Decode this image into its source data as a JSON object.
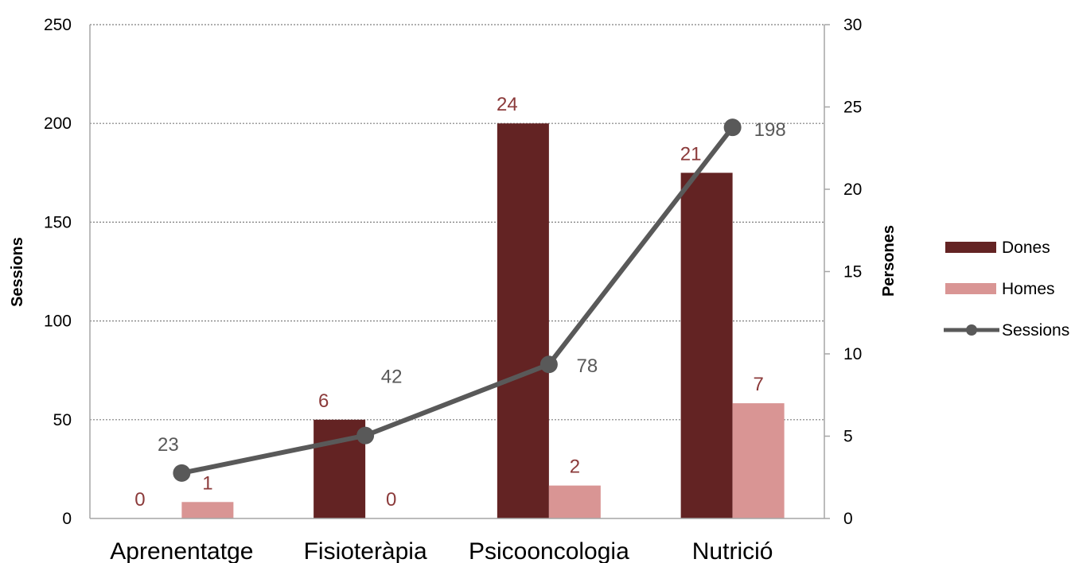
{
  "chart_data": {
    "type": "bar",
    "categories": [
      "Aprenentatge",
      "Fisioteràpia",
      "Psicooncologia",
      "Nutrició"
    ],
    "series": [
      {
        "name": "Dones",
        "type": "bar",
        "axis": "right",
        "values": [
          0,
          6,
          24,
          21
        ],
        "labels": [
          "0",
          "6",
          "24",
          "21"
        ],
        "color": "#632323"
      },
      {
        "name": "Homes",
        "type": "bar",
        "axis": "right",
        "values": [
          1,
          0,
          2,
          7
        ],
        "labels": [
          "1",
          "0",
          "2",
          "7"
        ],
        "color": "#d99594"
      },
      {
        "name": "Sessions",
        "type": "line",
        "axis": "left",
        "values": [
          23,
          42,
          78,
          198
        ],
        "labels": [
          "23",
          "42",
          "78",
          "198"
        ],
        "color": "#595959"
      }
    ],
    "y_left": {
      "label": "Sessions",
      "min": 0,
      "max": 250,
      "ticks": [
        "0",
        "50",
        "100",
        "150",
        "200",
        "250"
      ]
    },
    "y_right": {
      "label": "Persones",
      "min": 0,
      "max": 30,
      "ticks": [
        "0",
        "5",
        "10",
        "15",
        "20",
        "25",
        "30"
      ]
    },
    "grid": true,
    "legend_position": "right",
    "label_color": "#8b3a3a"
  }
}
